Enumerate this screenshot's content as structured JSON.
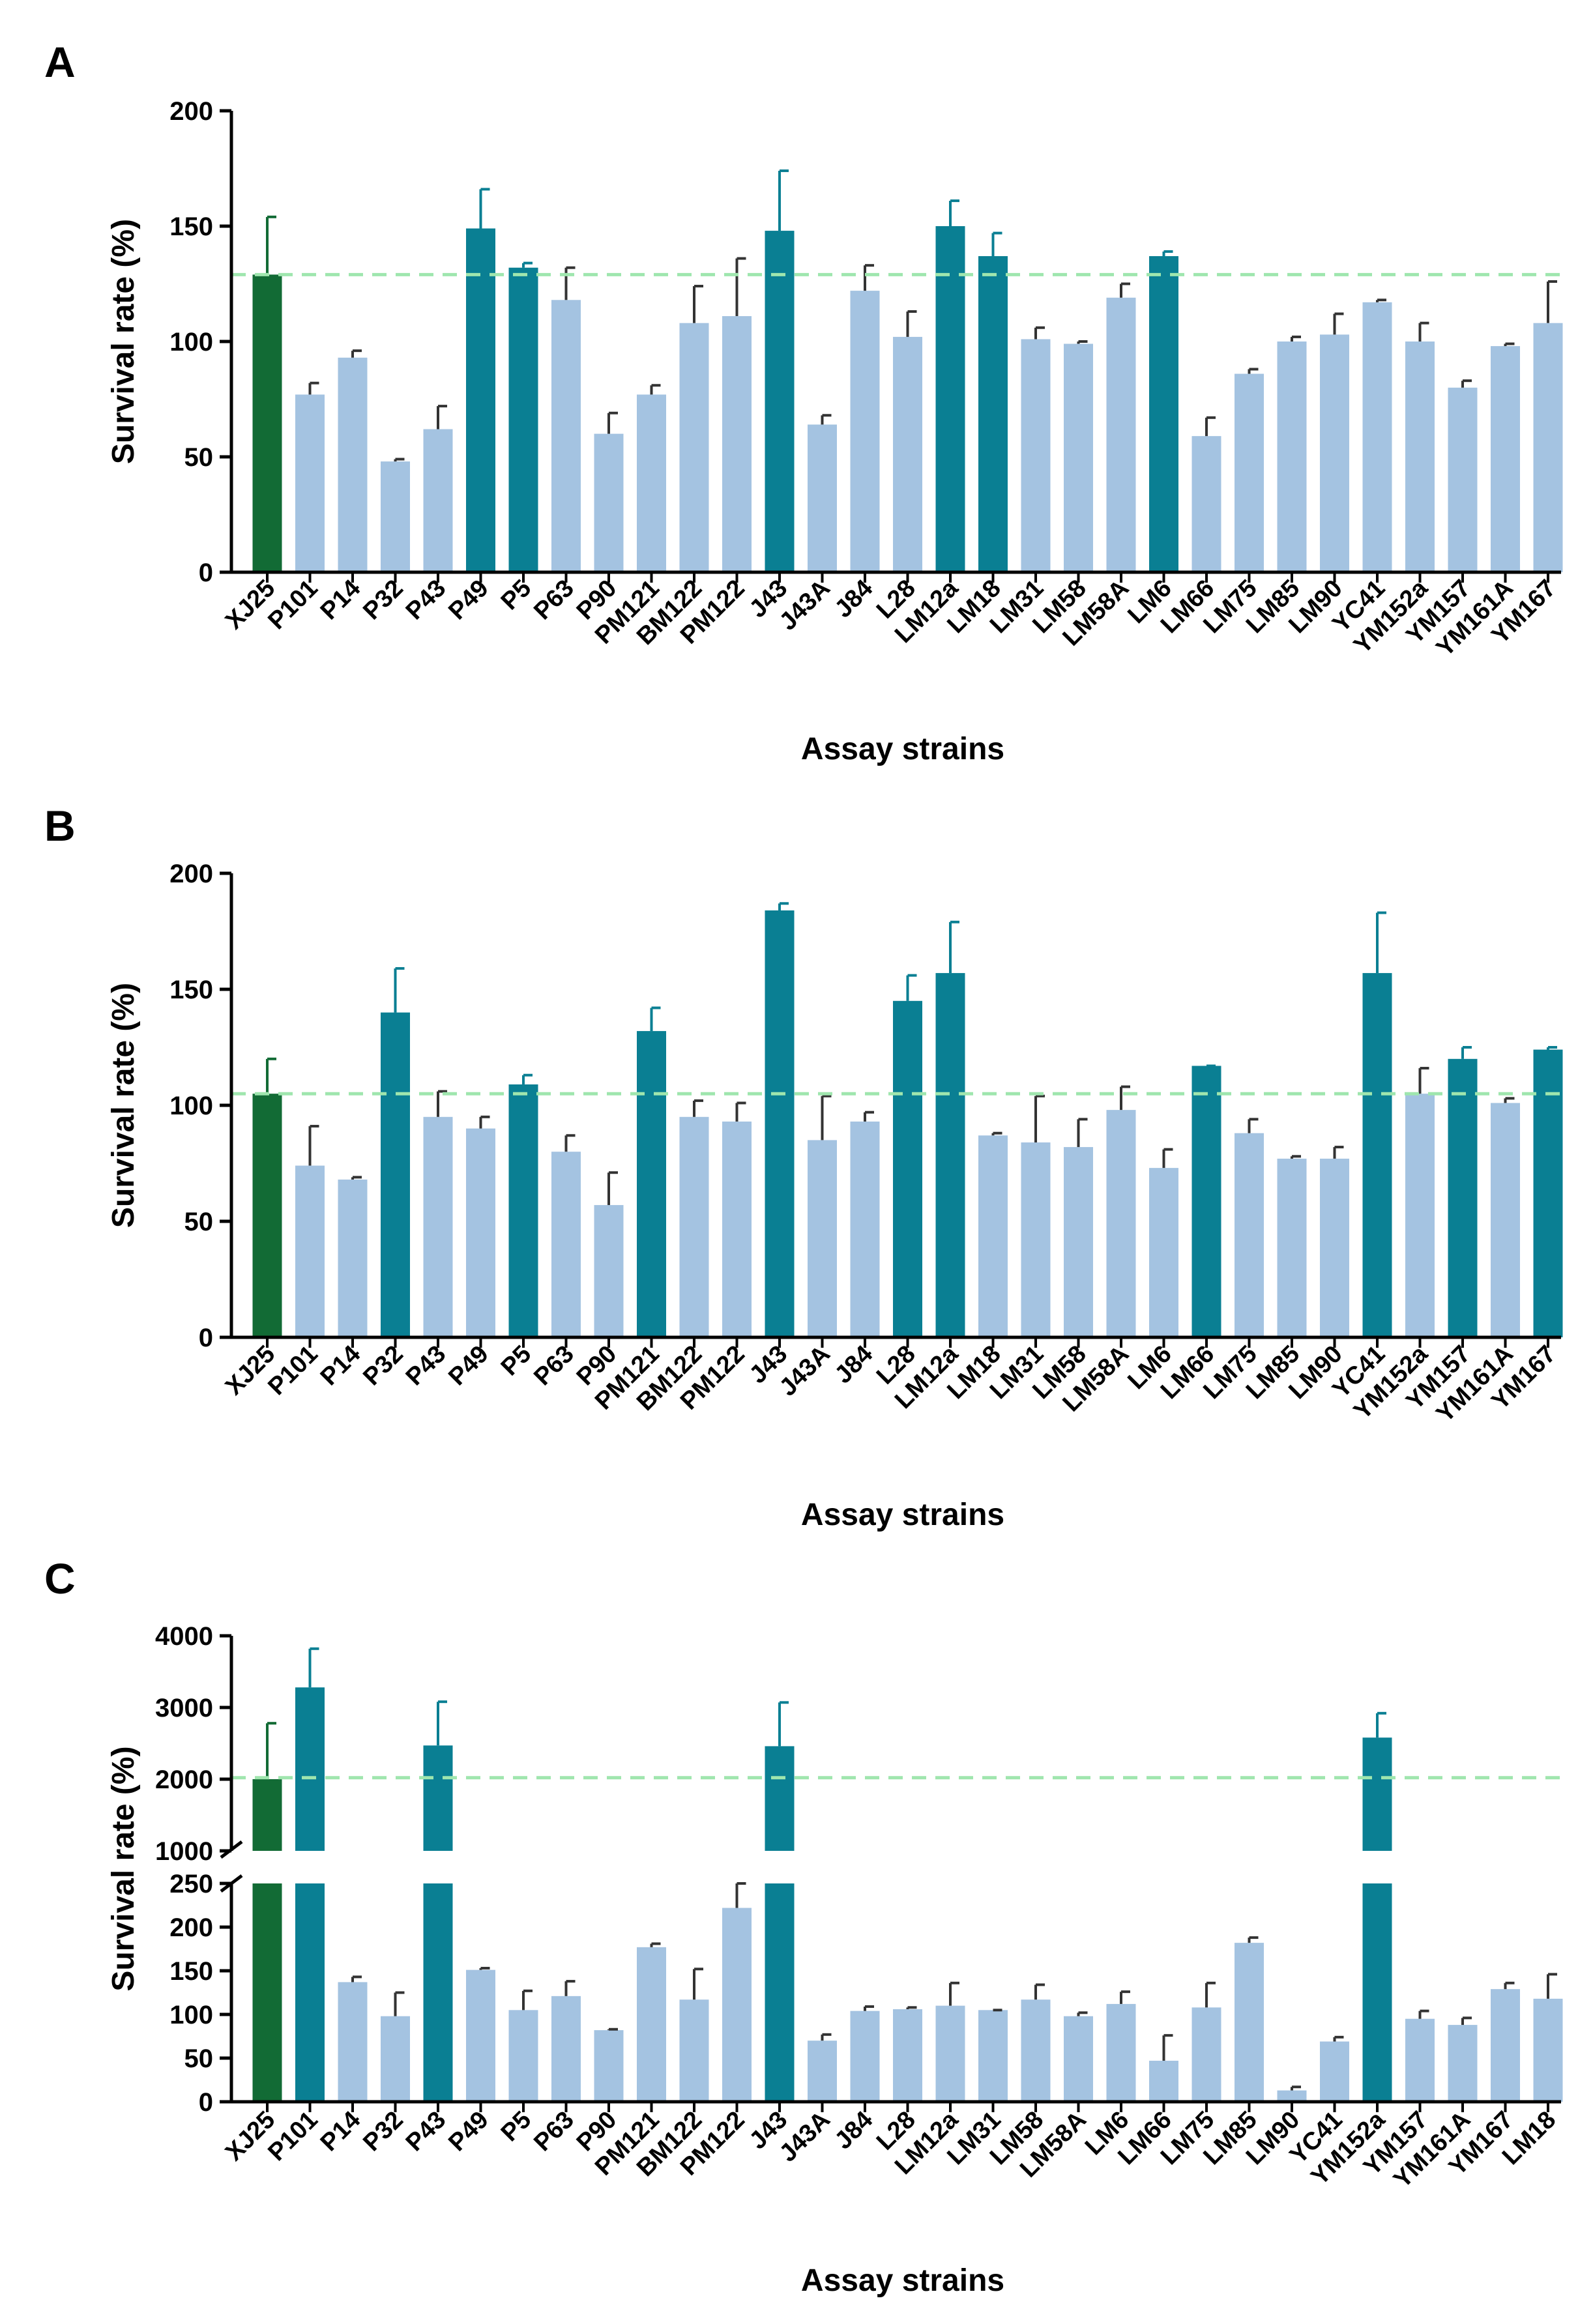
{
  "colors": {
    "reference": "#126b35",
    "highlight": "#0a7f93",
    "normal": "#a4c3e1",
    "reference_line": "#9fe6ae",
    "axis": "#000000"
  },
  "chart_data": [
    {
      "type": "bar",
      "panel": "A",
      "xlabel": "Assay strains",
      "ylabel": "Survival rate (%)",
      "ylim": [
        0,
        200
      ],
      "yticks": [
        0,
        50,
        100,
        150,
        200
      ],
      "reference_line": 129,
      "categories": [
        "XJ25",
        "P101",
        "P14",
        "P32",
        "P43",
        "P49",
        "P5",
        "P63",
        "P90",
        "PM121",
        "BM122",
        "PM122",
        "J43",
        "J43A",
        "J84",
        "L28",
        "LM12a",
        "LM18",
        "LM31",
        "LM58",
        "LM58A",
        "LM6",
        "LM66",
        "LM75",
        "LM85",
        "LM90",
        "YC41",
        "YM152a",
        "YM157",
        "YM161A",
        "YM167"
      ],
      "values": [
        129,
        77,
        93,
        48,
        62,
        149,
        132,
        118,
        60,
        77,
        108,
        111,
        148,
        64,
        122,
        102,
        150,
        137,
        101,
        99,
        119,
        137,
        59,
        86,
        100,
        103,
        117,
        100,
        80,
        98,
        108
      ],
      "errors": [
        25,
        5,
        3,
        1,
        10,
        17,
        2,
        14,
        9,
        4,
        16,
        25,
        26,
        4,
        11,
        11,
        11,
        10,
        5,
        1,
        6,
        2,
        8,
        2,
        2,
        9,
        1,
        8,
        3,
        1,
        18
      ],
      "groups": [
        "reference",
        "normal",
        "normal",
        "normal",
        "normal",
        "highlight",
        "highlight",
        "normal",
        "normal",
        "normal",
        "normal",
        "normal",
        "highlight",
        "normal",
        "normal",
        "normal",
        "highlight",
        "highlight",
        "normal",
        "normal",
        "normal",
        "highlight",
        "normal",
        "normal",
        "normal",
        "normal",
        "normal",
        "normal",
        "normal",
        "normal",
        "normal"
      ]
    },
    {
      "type": "bar",
      "panel": "B",
      "xlabel": "Assay strains",
      "ylabel": "Survival rate (%)",
      "ylim": [
        0,
        200
      ],
      "yticks": [
        0,
        50,
        100,
        150,
        200
      ],
      "reference_line": 105,
      "categories": [
        "XJ25",
        "P101",
        "P14",
        "P32",
        "P43",
        "P49",
        "P5",
        "P63",
        "P90",
        "PM121",
        "BM122",
        "PM122",
        "J43",
        "J43A",
        "J84",
        "L28",
        "LM12a",
        "LM18",
        "LM31",
        "LM58",
        "LM58A",
        "LM6",
        "LM66",
        "LM75",
        "LM85",
        "LM90",
        "YC41",
        "YM152a",
        "YM157",
        "YM161A",
        "YM167"
      ],
      "values": [
        105,
        74,
        68,
        140,
        95,
        90,
        109,
        80,
        57,
        132,
        95,
        93,
        184,
        85,
        93,
        145,
        157,
        87,
        84,
        82,
        98,
        73,
        117,
        88,
        77,
        77,
        157,
        105,
        120,
        101,
        124
      ],
      "errors": [
        15,
        17,
        1,
        19,
        11,
        5,
        4,
        7,
        14,
        10,
        7,
        8,
        3,
        19,
        4,
        11,
        22,
        1,
        20,
        12,
        10,
        8,
        0,
        6,
        1,
        5,
        26,
        11,
        5,
        2,
        1
      ],
      "groups": [
        "reference",
        "normal",
        "normal",
        "highlight",
        "normal",
        "normal",
        "highlight",
        "normal",
        "normal",
        "highlight",
        "normal",
        "normal",
        "highlight",
        "normal",
        "normal",
        "highlight",
        "highlight",
        "normal",
        "normal",
        "normal",
        "normal",
        "normal",
        "highlight",
        "normal",
        "normal",
        "normal",
        "highlight",
        "normal",
        "highlight",
        "normal",
        "highlight"
      ]
    },
    {
      "type": "bar",
      "panel": "C",
      "xlabel": "Assay strains",
      "ylabel": "Survival rate (%)",
      "broken_axis": true,
      "ylim_lower": [
        0,
        250
      ],
      "yticks_lower": [
        0,
        50,
        100,
        150,
        200,
        250
      ],
      "ylim_upper": [
        1000,
        4000
      ],
      "yticks_upper": [
        1000,
        2000,
        3000,
        4000
      ],
      "reference_line": 2020,
      "categories": [
        "XJ25",
        "P101",
        "P14",
        "P32",
        "P43",
        "P49",
        "P5",
        "P63",
        "P90",
        "PM121",
        "BM122",
        "PM122",
        "J43",
        "J43A",
        "J84",
        "L28",
        "LM12a",
        "LM31",
        "LM58",
        "LM58A",
        "LM6",
        "LM66",
        "LM75",
        "LM85",
        "LM90",
        "YC41",
        "YM152a",
        "YM157",
        "YM161A",
        "YM167",
        "LM18"
      ],
      "values": [
        2000,
        3280,
        137,
        98,
        2470,
        151,
        105,
        121,
        82,
        177,
        117,
        222,
        2460,
        70,
        104,
        106,
        110,
        105,
        117,
        98,
        112,
        47,
        108,
        182,
        13,
        69,
        2580,
        95,
        88,
        129,
        118
      ],
      "errors": [
        780,
        540,
        6,
        27,
        610,
        2,
        22,
        17,
        1,
        4,
        35,
        28,
        610,
        7,
        5,
        2,
        26,
        0,
        17,
        4,
        14,
        29,
        28,
        6,
        4,
        5,
        340,
        9,
        8,
        7,
        28
      ],
      "groups": [
        "reference",
        "highlight",
        "normal",
        "normal",
        "highlight",
        "normal",
        "normal",
        "normal",
        "normal",
        "normal",
        "normal",
        "normal",
        "highlight",
        "normal",
        "normal",
        "normal",
        "normal",
        "normal",
        "normal",
        "normal",
        "normal",
        "normal",
        "normal",
        "normal",
        "normal",
        "normal",
        "highlight",
        "normal",
        "normal",
        "normal",
        "normal"
      ]
    }
  ]
}
